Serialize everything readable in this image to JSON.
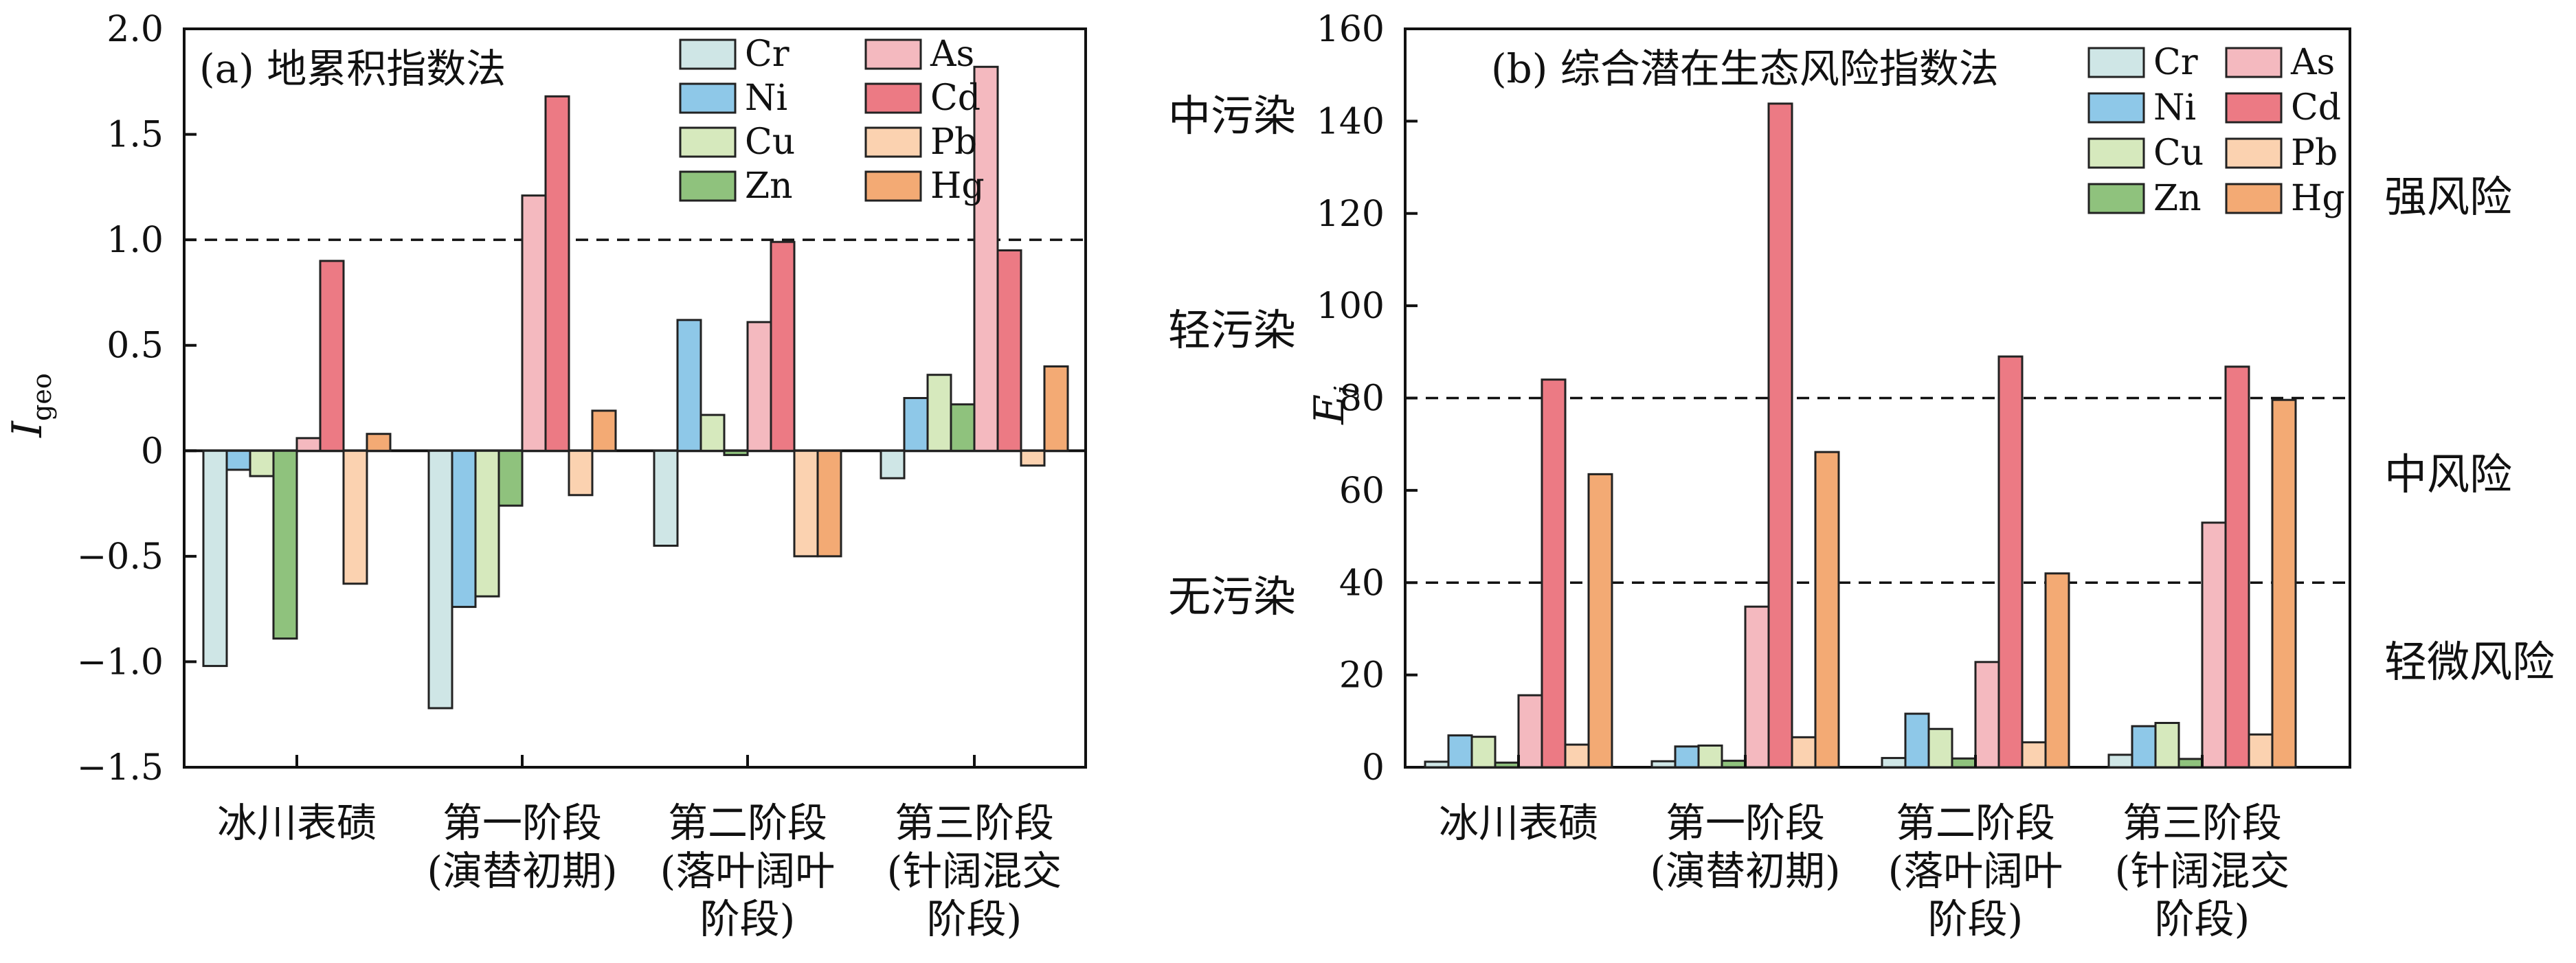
{
  "figure": {
    "series_colors": {
      "Cr": "#cfe6e6",
      "Ni": "#8ec8e8",
      "Cu": "#d6e9bd",
      "Zn": "#8fc27d",
      "As": "#f4b9bf",
      "Cd": "#ec7a84",
      "Pb": "#fbd2b0",
      "Hg": "#f3aa74"
    }
  },
  "chart_data": [
    {
      "type": "bar",
      "panel_title": "(a) 地累积指数法",
      "ylabel_main": "I",
      "ylabel_sub": "geo",
      "ylim": [
        -1.5,
        2.0
      ],
      "yticks": [
        {
          "value": 2.0,
          "label": "2.0"
        },
        {
          "value": 1.5,
          "label": "1.5"
        },
        {
          "value": 1.0,
          "label": "1.0"
        },
        {
          "value": 0.5,
          "label": "0.5"
        },
        {
          "value": 0.0,
          "label": "0"
        },
        {
          "value": -0.5,
          "label": "−0.5"
        },
        {
          "value": -1.0,
          "label": "−1.0"
        },
        {
          "value": -1.5,
          "label": "−1.5"
        }
      ],
      "reference_lines": [
        1.0
      ],
      "zero_line": true,
      "categories": [
        [
          "冰川表碛"
        ],
        [
          "第一阶段",
          "(演替初期)"
        ],
        [
          "第二阶段",
          "(落叶阔叶",
          "阶段)"
        ],
        [
          "第三阶段",
          "(针阔混交",
          "阶段)"
        ]
      ],
      "zone_labels": [
        "中污染",
        "轻污染",
        "无污染"
      ],
      "legend_placement": "top-right",
      "series": [
        {
          "name": "Cr",
          "values": [
            -1.02,
            -1.22,
            -0.45,
            -0.13
          ]
        },
        {
          "name": "Ni",
          "values": [
            -0.09,
            -0.74,
            0.62,
            0.25
          ]
        },
        {
          "name": "Cu",
          "values": [
            -0.12,
            -0.69,
            0.17,
            0.36
          ]
        },
        {
          "name": "Zn",
          "values": [
            -0.89,
            -0.26,
            -0.02,
            0.22
          ]
        },
        {
          "name": "As",
          "values": [
            0.06,
            1.21,
            0.61,
            1.82
          ]
        },
        {
          "name": "Cd",
          "values": [
            0.9,
            1.68,
            0.99,
            0.95
          ]
        },
        {
          "name": "Pb",
          "values": [
            -0.63,
            -0.21,
            -0.5,
            -0.07
          ]
        },
        {
          "name": "Hg",
          "values": [
            0.08,
            0.19,
            -0.5,
            0.4
          ]
        }
      ]
    },
    {
      "type": "bar",
      "panel_title": "(b) 综合潜在生态风险指数法",
      "ylabel_main": "E",
      "ylabel_sub": "j",
      "ylim": [
        0,
        160
      ],
      "yticks": [
        {
          "value": 0,
          "label": "0"
        },
        {
          "value": 20,
          "label": "20"
        },
        {
          "value": 40,
          "label": "40"
        },
        {
          "value": 60,
          "label": "60"
        },
        {
          "value": 80,
          "label": "80"
        },
        {
          "value": 100,
          "label": "100"
        },
        {
          "value": 120,
          "label": "120"
        },
        {
          "value": 140,
          "label": "140"
        },
        {
          "value": 160,
          "label": "160"
        }
      ],
      "reference_lines": [
        80,
        40
      ],
      "zero_line": false,
      "categories": [
        [
          "冰川表碛"
        ],
        [
          "第一阶段",
          "(演替初期)"
        ],
        [
          "第二阶段",
          "(落叶阔叶",
          "阶段)"
        ],
        [
          "第三阶段",
          "(针阔混交",
          "阶段)"
        ]
      ],
      "zone_labels": [
        "强风险",
        "中风险",
        "轻微风险"
      ],
      "legend_placement": "top-right",
      "series": [
        {
          "name": "Cr",
          "values": [
            1.2,
            1.3,
            2.0,
            2.7
          ]
        },
        {
          "name": "Ni",
          "values": [
            6.9,
            4.5,
            11.6,
            8.9
          ]
        },
        {
          "name": "Cu",
          "values": [
            6.6,
            4.7,
            8.3,
            9.6
          ]
        },
        {
          "name": "Zn",
          "values": [
            1.0,
            1.4,
            1.9,
            1.8
          ]
        },
        {
          "name": "As",
          "values": [
            15.6,
            34.8,
            22.8,
            53.0
          ]
        },
        {
          "name": "Cd",
          "values": [
            84.0,
            143.8,
            89.0,
            86.8
          ]
        },
        {
          "name": "Pb",
          "values": [
            4.9,
            6.5,
            5.4,
            7.1
          ]
        },
        {
          "name": "Hg",
          "values": [
            63.5,
            68.3,
            42.0,
            79.6
          ]
        }
      ]
    }
  ]
}
